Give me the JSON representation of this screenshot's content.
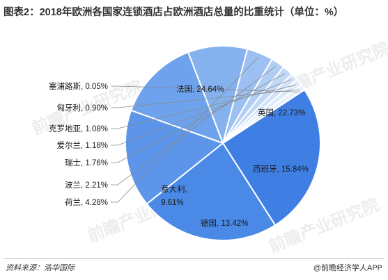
{
  "title": "图表2：2018年欧洲各国家连锁酒店占欧洲酒店总量的比重统计（单位：%）",
  "source": "资料来源：浩华国际",
  "brand": "@前瞻经济学人APP",
  "watermark": "前瞻产业研究院",
  "colors": {
    "big": "#3f7ee2",
    "line": "#8a8a8a",
    "label": "#1a1a1a"
  },
  "chart_data": {
    "type": "pie",
    "title": "",
    "unit": "%",
    "slices": [
      {
        "label": "法国",
        "value": 24.64,
        "color": "#3f7ee2"
      },
      {
        "label": "英国",
        "value": 22.73,
        "color": "#4a89e6"
      },
      {
        "label": "西班牙",
        "value": 15.84,
        "color": "#5c95e9"
      },
      {
        "label": "德国",
        "value": 13.42,
        "color": "#6fa2ec"
      },
      {
        "label": "意大利",
        "value": 9.61,
        "color": "#85b2ef"
      },
      {
        "label": "荷兰",
        "value": 4.28,
        "color": "#9cc0f2"
      },
      {
        "label": "波兰",
        "value": 2.21,
        "color": "#b0cdf4"
      },
      {
        "label": "瑞士",
        "value": 1.76,
        "color": "#c1d8f6"
      },
      {
        "label": "爱尔兰",
        "value": 1.18,
        "color": "#d1e2f8"
      },
      {
        "label": "克罗地亚",
        "value": 1.08,
        "color": "#ddeafa"
      },
      {
        "label": "匈牙利",
        "value": 0.9,
        "color": "#e7f0fb"
      },
      {
        "label": "塞浦路斯",
        "value": 0.05,
        "color": "#eff5fd"
      }
    ]
  }
}
